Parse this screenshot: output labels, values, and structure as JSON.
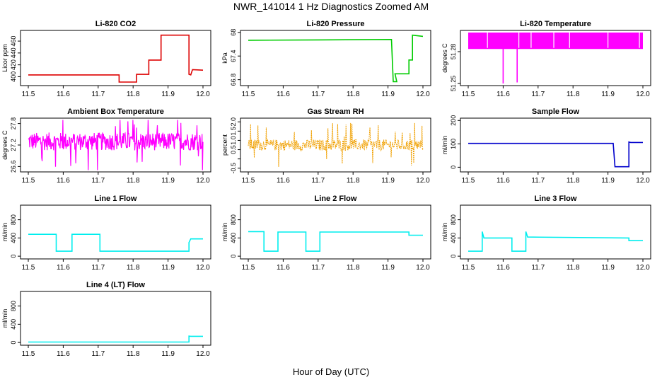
{
  "page": {
    "title": "NWR_141014  1 Hz Diagnostics Zoomed AM",
    "xlabel": "Hour of Day (UTC)"
  },
  "colors": {
    "red": "#dd0000",
    "green": "#00cc00",
    "magenta": "#ff00ff",
    "orange": "#f0a000",
    "blue": "#0000cc",
    "cyan": "#00eeee"
  },
  "chart_data": [
    {
      "type": "line",
      "title": "Li-820 CO2",
      "ylabel": "Licor ppm",
      "color": "#dd0000",
      "xlim": [
        11.5,
        12.0
      ],
      "ylim": [
        385,
        478
      ],
      "yticks": [
        400,
        420,
        440,
        460
      ],
      "xticks": [
        11.5,
        11.6,
        11.7,
        11.8,
        11.9,
        12.0
      ],
      "series": [
        {
          "x": [
            11.5,
            11.76,
            11.76,
            11.81,
            11.81,
            11.845,
            11.845,
            11.88,
            11.88,
            11.96,
            11.96,
            11.965,
            11.97,
            11.97,
            12.0
          ],
          "y": [
            403,
            403,
            391,
            391,
            404,
            404,
            428,
            428,
            470,
            470,
            404,
            403,
            412,
            412,
            411
          ]
        }
      ]
    },
    {
      "type": "line",
      "title": "Li-820 Pressure",
      "ylabel": "kPa",
      "color": "#00cc00",
      "xlim": [
        11.5,
        12.0
      ],
      "ylim": [
        66.65,
        68.05
      ],
      "yticks": [
        66.8,
        67.4,
        68.0
      ],
      "xticks": [
        11.5,
        11.6,
        11.7,
        11.8,
        11.9,
        12.0
      ],
      "series": [
        {
          "x": [
            11.5,
            11.7,
            11.91,
            11.915,
            11.925,
            11.92,
            11.96,
            11.96,
            11.97,
            11.97,
            12.0
          ],
          "y": [
            67.8,
            67.81,
            67.82,
            66.75,
            66.75,
            66.95,
            66.95,
            67.3,
            67.3,
            67.93,
            67.9
          ]
        }
      ]
    },
    {
      "type": "line",
      "title": "Li-820 Temperature",
      "ylabel": "degrees C",
      "color": "#ff00ff",
      "xlim": [
        11.5,
        12.0
      ],
      "ylim": [
        51.248,
        51.3
      ],
      "yticks": [
        51.25,
        51.28
      ],
      "xticks": [
        11.5,
        11.6,
        11.7,
        11.8,
        11.9,
        12.0
      ],
      "series": [
        {
          "x": [
            11.5,
            11.6,
            11.6,
            11.6,
            11.64,
            11.64,
            11.64,
            12.0
          ],
          "y": [
            51.283,
            51.283,
            51.25,
            51.283,
            51.283,
            51.251,
            51.283,
            51.283
          ],
          "band_top": 51.298
        }
      ]
    },
    {
      "type": "line",
      "title": "Ambient Box Temperature",
      "ylabel": "degrees C",
      "color": "#ff00ff",
      "xlim": [
        11.5,
        12.0
      ],
      "ylim": [
        26.45,
        27.95
      ],
      "yticks": [
        26.6,
        27.2,
        27.8
      ],
      "xticks": [
        11.5,
        11.6,
        11.7,
        11.8,
        11.9,
        12.0
      ],
      "series": [
        {
          "mean": 27.3,
          "spread": 0.25,
          "min": 26.5,
          "max": 27.9
        }
      ]
    },
    {
      "type": "line",
      "title": "Gas Stream RH",
      "ylabel": "percent",
      "color": "#f0a000",
      "xlim": [
        11.5,
        12.0
      ],
      "ylim": [
        -0.7,
        2.2
      ],
      "yticks": [
        -0.5,
        0.0,
        0.5,
        1.0,
        1.5,
        2.0
      ],
      "yticklabels": [
        "-0.5",
        "",
        "0.5",
        "1.0",
        "1.5",
        "2.0"
      ],
      "xticks": [
        11.5,
        11.6,
        11.7,
        11.8,
        11.9,
        12.0
      ],
      "series": [
        {
          "mean": 0.75,
          "spread": 0.3,
          "min": -0.6,
          "max": 2.05
        }
      ]
    },
    {
      "type": "line",
      "title": "Sample Flow",
      "ylabel": "ml/min",
      "color": "#0000cc",
      "xlim": [
        11.5,
        12.0
      ],
      "ylim": [
        -20,
        210
      ],
      "yticks": [
        0,
        100,
        200
      ],
      "xticks": [
        11.5,
        11.6,
        11.7,
        11.8,
        11.9,
        12.0
      ],
      "series": [
        {
          "x": [
            11.5,
            11.915,
            11.92,
            11.96,
            11.96,
            11.965,
            12.0
          ],
          "y": [
            102,
            102,
            2,
            2,
            108,
            106,
            106
          ]
        }
      ]
    },
    {
      "type": "line",
      "title": "Line 1 Flow",
      "ylabel": "ml/min",
      "color": "#00eeee",
      "xlim": [
        11.5,
        12.0
      ],
      "ylim": [
        -60,
        1120
      ],
      "yticks": [
        0,
        400,
        800
      ],
      "xticks": [
        11.5,
        11.6,
        11.7,
        11.8,
        11.9,
        12.0
      ],
      "series": [
        {
          "x": [
            11.5,
            11.58,
            11.58,
            11.625,
            11.625,
            11.705,
            11.705,
            11.96,
            11.96,
            11.965,
            12.0
          ],
          "y": [
            480,
            480,
            110,
            110,
            480,
            480,
            110,
            110,
            300,
            380,
            380
          ]
        }
      ]
    },
    {
      "type": "line",
      "title": "Line 2 Flow",
      "ylabel": "ml/min",
      "color": "#00eeee",
      "xlim": [
        11.5,
        12.0
      ],
      "ylim": [
        -60,
        1120
      ],
      "yticks": [
        0,
        400,
        800
      ],
      "xticks": [
        11.5,
        11.6,
        11.7,
        11.8,
        11.9,
        12.0
      ],
      "series": [
        {
          "x": [
            11.5,
            11.545,
            11.545,
            11.585,
            11.585,
            11.665,
            11.665,
            11.705,
            11.705,
            11.96,
            11.96,
            12.0
          ],
          "y": [
            540,
            540,
            110,
            110,
            530,
            530,
            110,
            110,
            530,
            530,
            460,
            460
          ]
        }
      ]
    },
    {
      "type": "line",
      "title": "Line 3 Flow",
      "ylabel": "ml/min",
      "color": "#00eeee",
      "xlim": [
        11.5,
        12.0
      ],
      "ylim": [
        -60,
        1120
      ],
      "yticks": [
        0,
        400,
        800
      ],
      "xticks": [
        11.5,
        11.6,
        11.7,
        11.8,
        11.9,
        12.0
      ],
      "series": [
        {
          "x": [
            11.5,
            11.54,
            11.54,
            11.545,
            11.625,
            11.625,
            11.665,
            11.665,
            11.67,
            11.96,
            11.96,
            12.0
          ],
          "y": [
            110,
            110,
            540,
            400,
            400,
            110,
            110,
            540,
            420,
            400,
            340,
            340
          ]
        }
      ]
    },
    {
      "type": "line",
      "title": "Line 4 (LT) Flow",
      "ylabel": "ml/min",
      "color": "#00eeee",
      "xlim": [
        11.5,
        12.0
      ],
      "ylim": [
        -60,
        1120
      ],
      "yticks": [
        0,
        400,
        800
      ],
      "xticks": [
        11.5,
        11.6,
        11.7,
        11.8,
        11.9,
        12.0
      ],
      "series": [
        {
          "x": [
            11.5,
            11.96,
            11.96,
            11.965,
            12.0
          ],
          "y": [
            10,
            10,
            140,
            135,
            135
          ]
        }
      ]
    }
  ]
}
